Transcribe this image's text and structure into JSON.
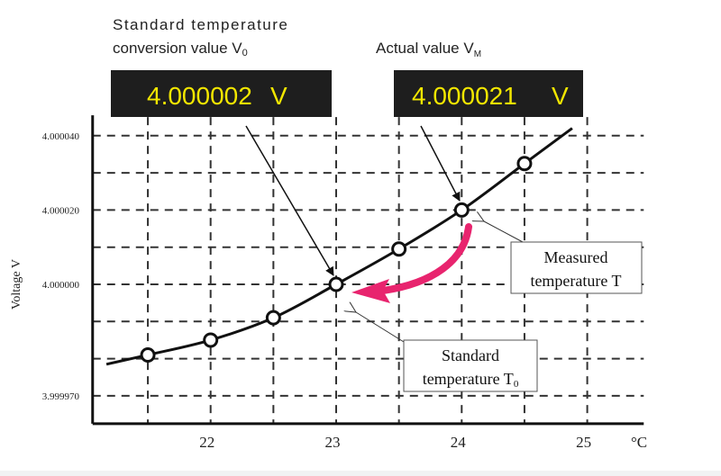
{
  "title_left": {
    "line1": "Standard temperature",
    "line2": "conversion value V",
    "sub": "0"
  },
  "title_right": {
    "text": "Actual value V",
    "sub": "M"
  },
  "display_left": {
    "value": "4.000002",
    "unit": "V"
  },
  "display_right": {
    "value": "4.000021",
    "unit": "V"
  },
  "callout_measured": {
    "line1": "Measured",
    "line2": "temperature T"
  },
  "callout_standard": {
    "line1": "Standard",
    "line2": "temperature T",
    "sub": "0"
  },
  "colors": {
    "display_bg": "#1e1e1e",
    "display_text": "#f2e600",
    "arrow_pink": "#e8246e",
    "grid": "#333333"
  },
  "chart_data": {
    "type": "line",
    "xlabel": "°C",
    "ylabel": "Voltage V",
    "x_ticks": [
      22,
      23,
      24,
      25
    ],
    "x_tick_labels": [
      "22",
      "23",
      "24",
      "25"
    ],
    "y_ticks": [
      3.99997,
      4.0,
      4.00002,
      4.00004
    ],
    "y_tick_labels": [
      "3.999970",
      "4.000000",
      "4.000020",
      "4.000040"
    ],
    "x_grid": [
      21.5,
      22,
      22.5,
      23,
      23.5,
      24,
      24.5,
      25
    ],
    "y_grid_uV": [
      -30,
      -20,
      -10,
      0,
      10,
      20,
      30,
      40
    ],
    "xlim": [
      21.06,
      25.45
    ],
    "ylim_uV": [
      -37.5,
      45
    ],
    "grid": true,
    "points": {
      "x": [
        21.5,
        22,
        22.5,
        23,
        23.5,
        24,
        24.5
      ],
      "y_uV": [
        -19,
        -15,
        -9,
        0,
        9.5,
        20,
        32.5
      ]
    },
    "curve": {
      "x": [
        21.17,
        21.5,
        22,
        22.5,
        23,
        23.5,
        24,
        24.5,
        24.88
      ],
      "y_uV": [
        -21.5,
        -19,
        -15,
        -9,
        0,
        9.5,
        20,
        32.5,
        42
      ]
    }
  }
}
